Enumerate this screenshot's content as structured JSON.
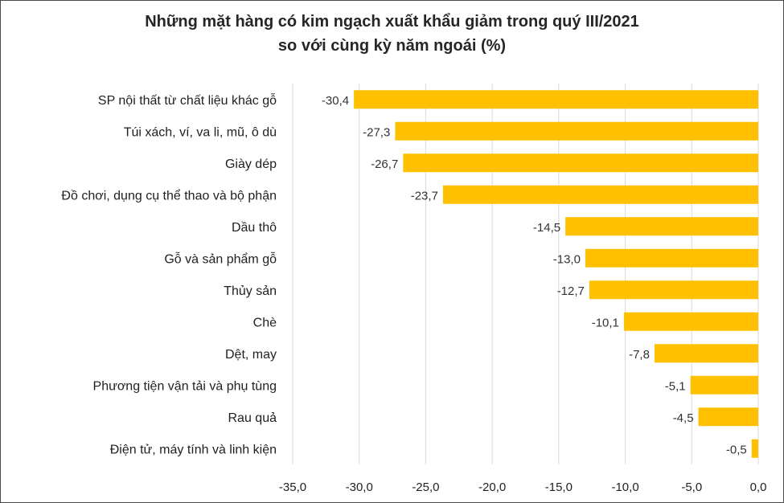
{
  "chart_data": {
    "type": "bar",
    "orientation": "horizontal",
    "title": "Những mặt hàng có kim ngạch xuất khẩu giảm trong quý III/2021",
    "subtitle": "so với cùng kỳ năm ngoái (%)",
    "categories": [
      "SP nội thất từ chất liệu khác gỗ",
      "Túi xách, ví, va li, mũ, ô dù",
      "Giày dép",
      "Đồ chơi, dụng cụ thể thao và bộ phận",
      "Dầu thô",
      "Gỗ và sản phẩm gỗ",
      "Thủy sản",
      "Chè",
      "Dệt, may",
      "Phương tiện vận tải và phụ tùng",
      "Rau quả",
      "Điện tử, máy tính và linh kiện"
    ],
    "values": [
      -30.4,
      -27.3,
      -26.7,
      -23.7,
      -14.5,
      -13.0,
      -12.7,
      -10.1,
      -7.8,
      -5.1,
      -4.5,
      -0.5
    ],
    "value_labels": [
      "-30,4",
      "-27,3",
      "-26,7",
      "-23,7",
      "-14,5",
      "-13,0",
      "-12,7",
      "-10,1",
      "-7,8",
      "-5,1",
      "-4,5",
      "-0,5"
    ],
    "xlim": [
      -35,
      0
    ],
    "x_ticks": [
      -35,
      -30,
      -25,
      -20,
      -15,
      -10,
      -5,
      0
    ],
    "x_tick_labels": [
      "-35,0",
      "-30,0",
      "-25,0",
      "-20,0",
      "-15,0",
      "-10,0",
      "-5,0",
      "0,0"
    ],
    "grid": "vertical",
    "legend": "none",
    "colors": {
      "bar": "#FFC000",
      "grid": "#d9d9d9"
    }
  }
}
